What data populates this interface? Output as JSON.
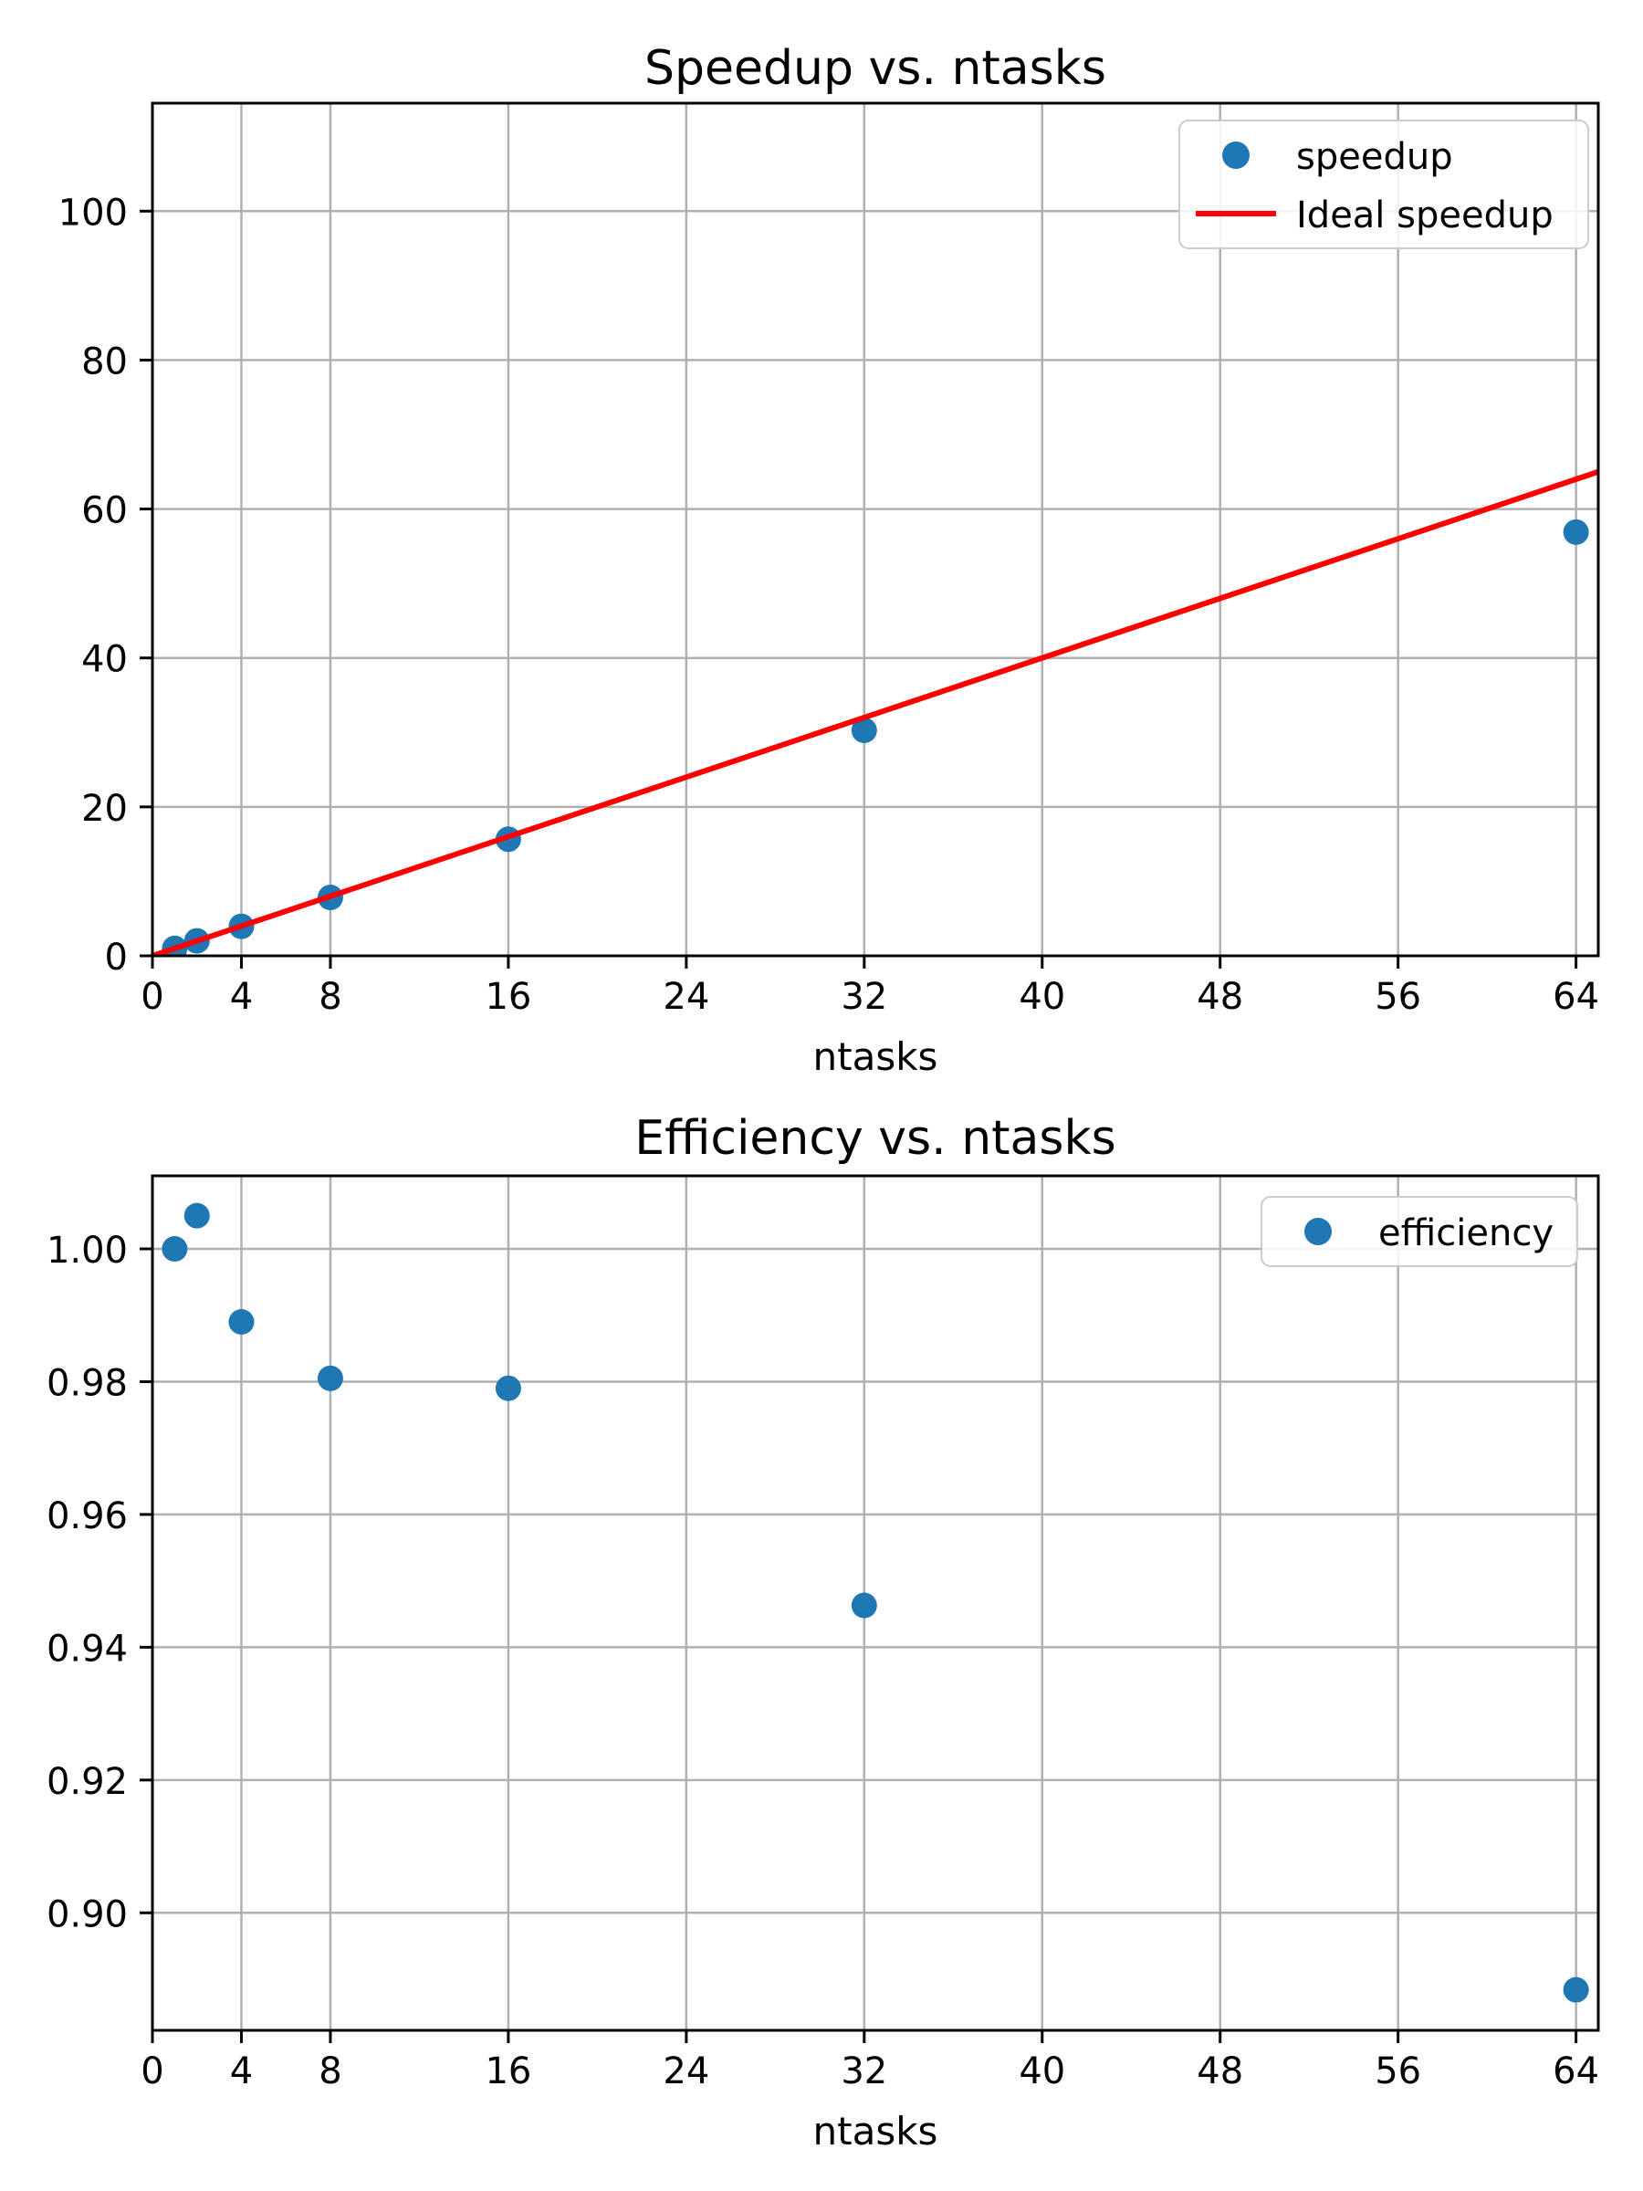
{
  "figure": {
    "background": "#ffffff"
  },
  "colors": {
    "marker": "#1f77b4",
    "ideal_line": "#ff0000",
    "grid": "#b0b0b0",
    "spine": "#000000",
    "legend_border": "#cccccc",
    "legend_fill": "#ffffff",
    "text": "#000000"
  },
  "chart_data": [
    {
      "id": "speedup",
      "type": "scatter",
      "title": "Speedup vs. ntasks",
      "xlabel": "ntasks",
      "ylabel": "",
      "xlim": [
        0,
        65
      ],
      "ylim": [
        0,
        114.5
      ],
      "grid": true,
      "legend_position": "upper right",
      "xticks": [
        0,
        4,
        8,
        16,
        24,
        32,
        40,
        48,
        56,
        64
      ],
      "xtick_labels": [
        "0",
        "4",
        "8",
        "16",
        "24",
        "32",
        "40",
        "48",
        "56",
        "64"
      ],
      "yticks": [
        0,
        20,
        40,
        60,
        80,
        100
      ],
      "ytick_labels": [
        "0",
        "20",
        "40",
        "60",
        "80",
        "100"
      ],
      "series": [
        {
          "name": "speedup",
          "type": "scatter",
          "color": "#1f77b4",
          "x": [
            1,
            2,
            4,
            8,
            16,
            32,
            64
          ],
          "y": [
            1.0,
            2.01,
            3.96,
            7.84,
            15.66,
            30.28,
            56.9
          ]
        },
        {
          "name": "Ideal speedup",
          "type": "line",
          "color": "#ff0000",
          "x": [
            0,
            65
          ],
          "y": [
            0,
            65
          ]
        }
      ]
    },
    {
      "id": "efficiency",
      "type": "scatter",
      "title": "Efficiency vs. ntasks",
      "xlabel": "ntasks",
      "ylabel": "",
      "xlim": [
        0,
        65
      ],
      "ylim": [
        0.8823,
        1.011
      ],
      "grid": true,
      "legend_position": "upper right",
      "xticks": [
        0,
        4,
        8,
        16,
        24,
        32,
        40,
        48,
        56,
        64
      ],
      "xtick_labels": [
        "0",
        "4",
        "8",
        "16",
        "24",
        "32",
        "40",
        "48",
        "56",
        "64"
      ],
      "yticks": [
        0.9,
        0.92,
        0.94,
        0.96,
        0.98,
        1.0
      ],
      "ytick_labels": [
        "0.90",
        "0.92",
        "0.94",
        "0.96",
        "0.98",
        "1.00"
      ],
      "series": [
        {
          "name": "efficiency",
          "type": "scatter",
          "color": "#1f77b4",
          "x": [
            1,
            2,
            4,
            8,
            16,
            32,
            64
          ],
          "y": [
            1.0,
            1.005,
            0.989,
            0.9805,
            0.979,
            0.9463,
            0.8884
          ]
        }
      ]
    }
  ]
}
